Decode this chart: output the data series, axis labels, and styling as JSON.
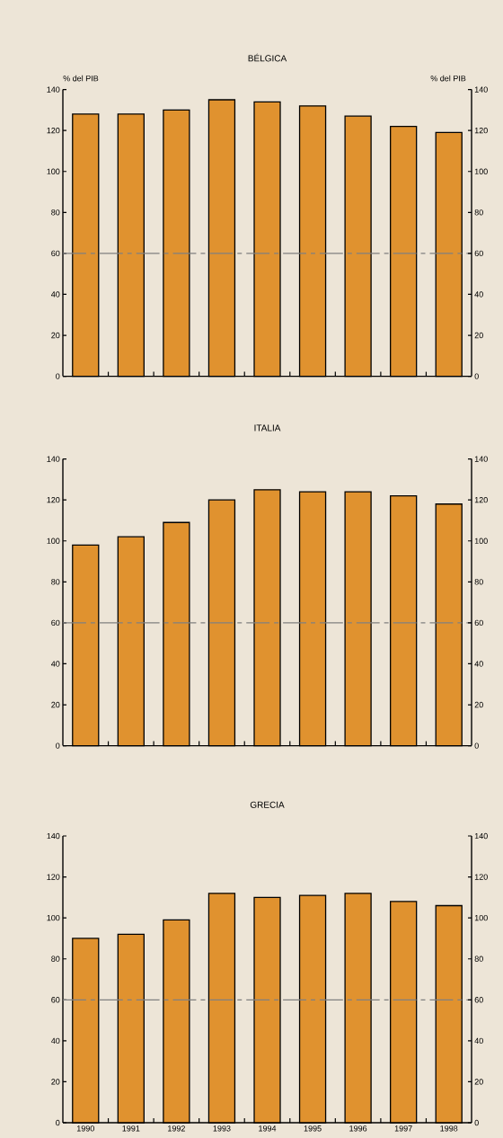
{
  "chart_data": [
    {
      "type": "bar",
      "title": "BÉLGICA",
      "ylabel": "% del PIB",
      "y2label": "% del PIB",
      "categories": [
        "1990",
        "1991",
        "1992",
        "1993",
        "1994",
        "1995",
        "1996",
        "1997",
        "1998"
      ],
      "values": [
        128,
        128,
        130,
        135,
        134,
        132,
        127,
        122,
        119
      ],
      "color": "#e0922f",
      "ylim": [
        0,
        140
      ],
      "yticks": [
        0,
        20,
        40,
        60,
        80,
        100,
        120,
        140
      ],
      "y2lim": [
        0,
        140
      ],
      "y2ticks": [
        0,
        20,
        40,
        60,
        80,
        100,
        120,
        140
      ],
      "ref_lines": [
        {
          "axis": "y",
          "value": 60,
          "color": "#808080",
          "line_style": "dashed"
        }
      ],
      "tick_labels": "y"
    },
    {
      "type": "bar",
      "title": "ITALIA",
      "categories": [
        "1990",
        "1991",
        "1992",
        "1993",
        "1994",
        "1995",
        "1996",
        "1997",
        "1998"
      ],
      "values": [
        98,
        102,
        109,
        120,
        125,
        124,
        124,
        122,
        118
      ],
      "color": "#e0922f",
      "ylim": [
        0,
        140
      ],
      "yticks": [
        0,
        20,
        40,
        60,
        80,
        100,
        120,
        140
      ],
      "y2lim": [
        0,
        140
      ],
      "y2ticks": [
        0,
        20,
        40,
        60,
        80,
        100,
        120,
        140
      ],
      "ref_lines": [
        {
          "axis": "y",
          "value": 60,
          "color": "#808080",
          "line_style": "dashed"
        }
      ],
      "tick_labels": "y"
    },
    {
      "type": "bar",
      "title": "GRECIA",
      "categories": [
        "1990",
        "1991",
        "1992",
        "1993",
        "1994",
        "1995",
        "1996",
        "1997",
        "1998"
      ],
      "values": [
        90,
        92,
        99,
        112,
        110,
        111,
        112,
        108,
        106
      ],
      "color": "#e0922f",
      "ylim": [
        0,
        140
      ],
      "yticks": [
        0,
        20,
        40,
        60,
        80,
        100,
        120,
        140
      ],
      "y2lim": [
        0,
        140
      ],
      "y2ticks": [
        0,
        20,
        40,
        60,
        80,
        100,
        120,
        140
      ],
      "ref_lines": [
        {
          "axis": "y",
          "value": 60,
          "color": "#808080",
          "line_style": "dashed"
        }
      ]
    }
  ]
}
